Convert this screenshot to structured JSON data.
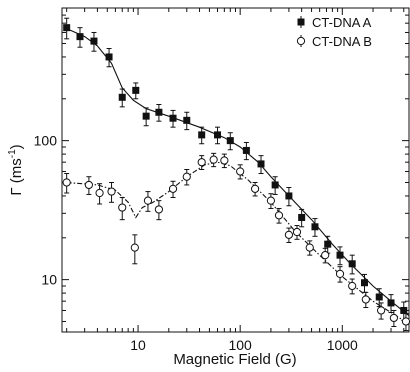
{
  "chart_data": {
    "type": "scatter",
    "xlabel": "Magnetic Field (G)",
    "ylabel": "Γ (ms",
    "ylabel_sup": "-1",
    "ylabel_close": ")",
    "xscale": "log",
    "yscale": "log",
    "xlim": [
      1.8,
      4500
    ],
    "ylim": [
      4.2,
      900
    ],
    "grid": false,
    "legend_position": "top-right",
    "x_ticks": [
      {
        "value": 10,
        "label": "10"
      },
      {
        "value": 100,
        "label": "100"
      },
      {
        "value": 1000,
        "label": "1000"
      }
    ],
    "y_ticks": [
      {
        "value": 10,
        "label": "10"
      },
      {
        "value": 100,
        "label": "100"
      }
    ],
    "series": [
      {
        "name": "CT-DNA A",
        "marker": "filled-square",
        "color": "#111111",
        "line_style": "solid",
        "points": [
          {
            "x": 2,
            "y": 650,
            "err": 110
          },
          {
            "x": 2.7,
            "y": 560,
            "err": 90
          },
          {
            "x": 3.7,
            "y": 520,
            "err": 80
          },
          {
            "x": 5.2,
            "y": 400,
            "err": 60
          },
          {
            "x": 7,
            "y": 205,
            "err": 30
          },
          {
            "x": 9.5,
            "y": 230,
            "err": 30
          },
          {
            "x": 12,
            "y": 150,
            "err": 22
          },
          {
            "x": 16,
            "y": 160,
            "err": 22
          },
          {
            "x": 22,
            "y": 145,
            "err": 20
          },
          {
            "x": 30,
            "y": 140,
            "err": 20
          },
          {
            "x": 42,
            "y": 110,
            "err": 15
          },
          {
            "x": 60,
            "y": 110,
            "err": 15
          },
          {
            "x": 80,
            "y": 100,
            "err": 14
          },
          {
            "x": 115,
            "y": 85,
            "err": 12
          },
          {
            "x": 160,
            "y": 68,
            "err": 10
          },
          {
            "x": 220,
            "y": 48,
            "err": 7
          },
          {
            "x": 300,
            "y": 40,
            "err": 6
          },
          {
            "x": 400,
            "y": 28,
            "err": 4
          },
          {
            "x": 540,
            "y": 24,
            "err": 3.5
          },
          {
            "x": 720,
            "y": 18,
            "err": 2.5
          },
          {
            "x": 950,
            "y": 15,
            "err": 2.2
          },
          {
            "x": 1250,
            "y": 13,
            "err": 2
          },
          {
            "x": 1650,
            "y": 9.5,
            "err": 1.4
          },
          {
            "x": 2300,
            "y": 7.5,
            "err": 1.1
          },
          {
            "x": 3000,
            "y": 6.8,
            "err": 1
          },
          {
            "x": 4000,
            "y": 6,
            "err": 0.9
          }
        ],
        "fit": [
          {
            "x": 2,
            "y": 640
          },
          {
            "x": 3,
            "y": 560
          },
          {
            "x": 4,
            "y": 480
          },
          {
            "x": 5.5,
            "y": 360
          },
          {
            "x": 7,
            "y": 240
          },
          {
            "x": 9,
            "y": 195
          },
          {
            "x": 12,
            "y": 170
          },
          {
            "x": 20,
            "y": 150
          },
          {
            "x": 40,
            "y": 125
          },
          {
            "x": 70,
            "y": 105
          },
          {
            "x": 100,
            "y": 90
          },
          {
            "x": 150,
            "y": 70
          },
          {
            "x": 200,
            "y": 55
          },
          {
            "x": 300,
            "y": 40
          },
          {
            "x": 500,
            "y": 27
          },
          {
            "x": 800,
            "y": 18
          },
          {
            "x": 1200,
            "y": 13
          },
          {
            "x": 2000,
            "y": 9
          },
          {
            "x": 3000,
            "y": 7
          },
          {
            "x": 4500,
            "y": 5.5
          }
        ]
      },
      {
        "name": "CT-DNA B",
        "marker": "open-circle",
        "color": "#111111",
        "line_style": "dashdot",
        "points": [
          {
            "x": 2,
            "y": 50,
            "err": 8
          },
          {
            "x": 3.3,
            "y": 48,
            "err": 7
          },
          {
            "x": 4.2,
            "y": 42,
            "err": 7
          },
          {
            "x": 5.5,
            "y": 43,
            "err": 7
          },
          {
            "x": 7,
            "y": 33,
            "err": 6
          },
          {
            "x": 9.3,
            "y": 17,
            "err": 4
          },
          {
            "x": 12.5,
            "y": 37,
            "err": 6
          },
          {
            "x": 16,
            "y": 32,
            "err": 5
          },
          {
            "x": 22,
            "y": 45,
            "err": 6
          },
          {
            "x": 30,
            "y": 55,
            "err": 7
          },
          {
            "x": 42,
            "y": 70,
            "err": 8
          },
          {
            "x": 55,
            "y": 73,
            "err": 8
          },
          {
            "x": 70,
            "y": 72,
            "err": 8
          },
          {
            "x": 100,
            "y": 60,
            "err": 7
          },
          {
            "x": 140,
            "y": 45,
            "err": 5
          },
          {
            "x": 200,
            "y": 37,
            "err": 4.5
          },
          {
            "x": 240,
            "y": 29,
            "err": 3.5
          },
          {
            "x": 300,
            "y": 21,
            "err": 2.5
          },
          {
            "x": 360,
            "y": 22,
            "err": 2.5
          },
          {
            "x": 480,
            "y": 17,
            "err": 2
          },
          {
            "x": 680,
            "y": 15,
            "err": 1.8
          },
          {
            "x": 950,
            "y": 11,
            "err": 1.4
          },
          {
            "x": 1250,
            "y": 9,
            "err": 1.1
          },
          {
            "x": 1700,
            "y": 7.2,
            "err": 0.9
          },
          {
            "x": 2400,
            "y": 6,
            "err": 0.8
          },
          {
            "x": 3200,
            "y": 5.3,
            "err": 0.7
          },
          {
            "x": 4200,
            "y": 5,
            "err": 0.7
          }
        ],
        "fit": [
          {
            "x": 2,
            "y": 50
          },
          {
            "x": 4,
            "y": 48
          },
          {
            "x": 6,
            "y": 44
          },
          {
            "x": 8,
            "y": 36
          },
          {
            "x": 9.5,
            "y": 28
          },
          {
            "x": 11,
            "y": 33
          },
          {
            "x": 14,
            "y": 36
          },
          {
            "x": 20,
            "y": 43
          },
          {
            "x": 30,
            "y": 55
          },
          {
            "x": 45,
            "y": 67
          },
          {
            "x": 60,
            "y": 70
          },
          {
            "x": 80,
            "y": 66
          },
          {
            "x": 120,
            "y": 52
          },
          {
            "x": 200,
            "y": 36
          },
          {
            "x": 350,
            "y": 22
          },
          {
            "x": 600,
            "y": 15
          },
          {
            "x": 1000,
            "y": 10.5
          },
          {
            "x": 2000,
            "y": 7
          },
          {
            "x": 3000,
            "y": 5.8
          },
          {
            "x": 4500,
            "y": 4.8
          }
        ]
      }
    ]
  }
}
